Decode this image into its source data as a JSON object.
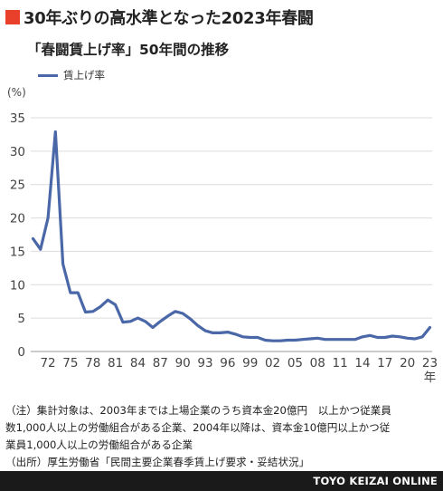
{
  "header": {
    "title": "30年ぶりの高水準となった2023年春闘",
    "subtitle": "「春闘賃上げ率」50年間の推移",
    "accent_color": "#e8402a"
  },
  "chart_data": {
    "type": "line",
    "ylabel": "(%)",
    "xlabel": "年",
    "ylim": [
      0,
      35
    ],
    "y_ticks": [
      0,
      5,
      10,
      15,
      20,
      25,
      30,
      35
    ],
    "x_ticks": [
      "72",
      "75",
      "78",
      "81",
      "84",
      "87",
      "90",
      "93",
      "96",
      "99",
      "02",
      "05",
      "08",
      "11",
      "14",
      "17",
      "20",
      "23"
    ],
    "x_tick_years": [
      1972,
      1975,
      1978,
      1981,
      1984,
      1987,
      1990,
      1993,
      1996,
      1999,
      2002,
      2005,
      2008,
      2011,
      2014,
      2017,
      2020,
      2023
    ],
    "grid": true,
    "legend_position": "top-left",
    "series": [
      {
        "name": "賃上げ率",
        "color": "#4a67a8",
        "x": [
          1970,
          1971,
          1972,
          1973,
          1974,
          1975,
          1976,
          1977,
          1978,
          1979,
          1980,
          1981,
          1982,
          1983,
          1984,
          1985,
          1986,
          1987,
          1988,
          1989,
          1990,
          1991,
          1992,
          1993,
          1994,
          1995,
          1996,
          1997,
          1998,
          1999,
          2000,
          2001,
          2002,
          2003,
          2004,
          2005,
          2006,
          2007,
          2008,
          2009,
          2010,
          2011,
          2012,
          2013,
          2014,
          2015,
          2016,
          2017,
          2018,
          2019,
          2020,
          2021,
          2022,
          2023
        ],
        "values": [
          16.9,
          15.3,
          20.0,
          32.9,
          13.1,
          8.8,
          8.8,
          5.9,
          6.0,
          6.7,
          7.7,
          7.0,
          4.4,
          4.5,
          5.0,
          4.5,
          3.6,
          4.5,
          5.3,
          6.0,
          5.7,
          4.9,
          3.9,
          3.1,
          2.8,
          2.8,
          2.9,
          2.6,
          2.2,
          2.1,
          2.1,
          1.7,
          1.6,
          1.6,
          1.7,
          1.7,
          1.8,
          1.9,
          2.0,
          1.8,
          1.8,
          1.8,
          1.8,
          1.8,
          2.2,
          2.4,
          2.1,
          2.1,
          2.3,
          2.2,
          2.0,
          1.9,
          2.2,
          3.6
        ]
      }
    ]
  },
  "notes": [
    "（注）集計対象は、2003年までは上場企業のうち資本金20億円　以上かつ従業員",
    "数1,000人以上の労働組合がある企業、2004年以降は、資本金10億円以上かつ従",
    "業員1,000人以上の労働組合がある企業",
    "（出所）厚生労働省「民間主要企業春季賃上げ要求・妥結状況」"
  ],
  "footer": {
    "brand": "TOYO KEIZAI ONLINE",
    "background_color": "#1a1a1a"
  }
}
